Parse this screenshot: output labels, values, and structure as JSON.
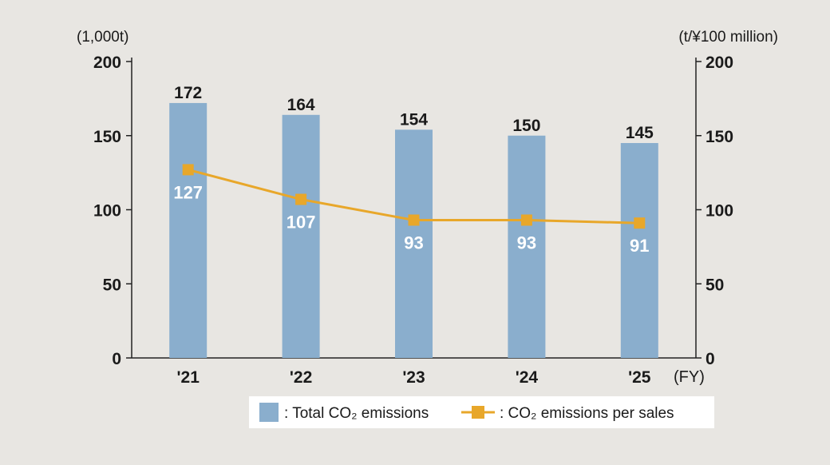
{
  "chart_data": {
    "type": "bar",
    "categories": [
      "'21",
      "'22",
      "'23",
      "'24",
      "'25"
    ],
    "highlight_category_color": "#e0201e",
    "highlight_index": 4,
    "series": [
      {
        "name": ": Total CO₂ emissions",
        "kind": "bar",
        "axis": "left",
        "color": "#8aaecd",
        "values": [
          172,
          164,
          154,
          150,
          145
        ]
      },
      {
        "name": ": CO₂ emissions per sales",
        "kind": "line",
        "axis": "right",
        "color": "#e8a72a",
        "values": [
          127,
          107,
          93,
          93,
          91
        ]
      }
    ],
    "y_left": {
      "unit": "(1,000t)",
      "ticks": [
        0,
        50,
        100,
        150,
        200
      ],
      "ylim": [
        0,
        200
      ]
    },
    "y_right": {
      "unit": "(t/¥100 million)",
      "ticks": [
        0,
        50,
        100,
        150,
        200
      ],
      "ylim": [
        0,
        200
      ]
    },
    "x_unit": "(FY)",
    "grid": false,
    "legend_position": "bottom-right"
  }
}
